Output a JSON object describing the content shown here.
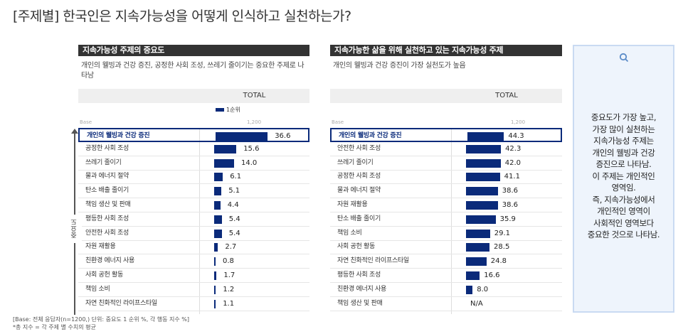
{
  "title": "[주제별] 한국인은 지속가능성을 어떻게 인식하고 실천하는가?",
  "chart_data": [
    {
      "type": "bar",
      "orientation": "horizontal",
      "title": "지속가능성 주제의 중요도",
      "subtitle": "개인의 웰빙과 건강 증진, 공정한 사회 조성, 쓰레기 줄이기는 중요한 주제로 나타남",
      "column_header": "TOTAL",
      "legend": "1순위",
      "base_label": "Base",
      "base_value": "1,200",
      "axis_label": "중요도",
      "highlight": "개인의 웰빙과 건강 증진",
      "categories": [
        "개인의 웰빙과 건강 증진",
        "공정한 사회 조성",
        "쓰레기 줄이기",
        "물과 에너지 절약",
        "탄소 배출 줄이기",
        "책임 생산 및 판매",
        "평등한 사회 조성",
        "안전한 사회 조성",
        "자원 재활용",
        "친환경 에너지 사용",
        "사회 공헌 활동",
        "책임 소비",
        "자연 친화적인 라이프스타일"
      ],
      "values": [
        36.6,
        15.6,
        14.0,
        6.1,
        5.1,
        4.4,
        5.4,
        5.4,
        2.7,
        0.8,
        1.7,
        1.2,
        1.1
      ],
      "labels": [
        "36.6",
        "15.6",
        "14.0",
        "6.1",
        "5.1",
        "4.4",
        "5.4",
        "5.4",
        "2.7",
        "0.8",
        "1.7",
        "1.2",
        "1.1"
      ]
    },
    {
      "type": "bar",
      "orientation": "horizontal",
      "title": "지속가능한 삶을 위해 실천하고 있는 지속가능성 주제",
      "subtitle": "개인의 웰빙과 건강 증진이 가장 실천도가 높음",
      "column_header": "TOTAL",
      "base_label": "Base",
      "base_value": "1,200",
      "highlight": "개인의 웰빙과 건강 증진",
      "categories": [
        "개인의 웰빙과 건강 증진",
        "안전한 사회 조성",
        "쓰레기 줄이기",
        "공정한 사회 조성",
        "물과 에너지 절약",
        "자원 재활용",
        "탄소 배출 줄이기",
        "책임 소비",
        "사회 공헌 활동",
        "자연 친화적인 라이프스타일",
        "평등한 사회 조성",
        "친환경 에너지 사용",
        "책임 생산 및 판매"
      ],
      "values": [
        44.3,
        42.3,
        42.0,
        41.1,
        38.6,
        38.6,
        35.9,
        29.1,
        28.5,
        24.8,
        16.6,
        8.0,
        null
      ],
      "labels": [
        "44.3",
        "42.3",
        "42.0",
        "41.1",
        "38.6",
        "38.6",
        "35.9",
        "29.1",
        "28.5",
        "24.8",
        "16.6",
        "8.0",
        "N/A"
      ]
    }
  ],
  "insight": {
    "icon": "search-icon",
    "lines": [
      "중요도가 가장 높고,",
      "가장 많이 실천하는",
      "지속가능성 주제는",
      "개인의 웰빙과 건강",
      "증진으로 나타남.",
      "이 주제는 개인적인",
      "영역임.",
      "즉, 지속가능성에서",
      "개인적인 영역이",
      "사회적인 영역보다",
      "중요한 것으로 나타남."
    ]
  },
  "notes": [
    "[Base: 전체 응답자(n=1200,) 단위: 중요도 1 순위 %, 각 행동 지수 %]",
    "*총 지수 = 각 주제 별 수치의 평균"
  ],
  "colors": {
    "bar": "#0a2a7a",
    "header": "#333333",
    "insight_bg": "#eef4fc"
  }
}
